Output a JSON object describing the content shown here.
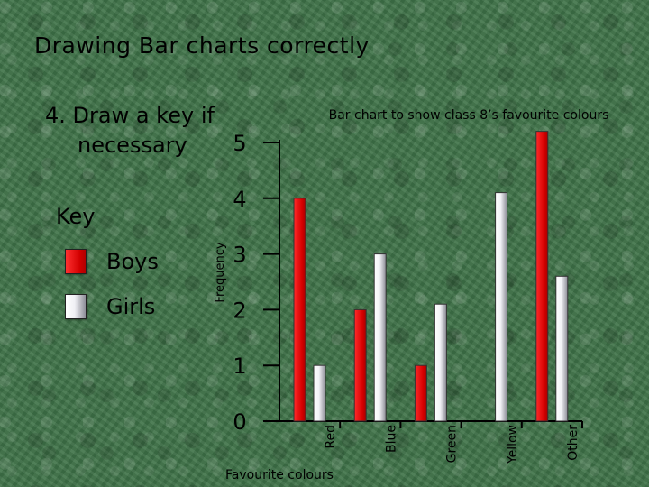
{
  "slide": {
    "title": "Drawing Bar charts correctly",
    "step_line1": "4. Draw a key if",
    "step_line2": "necessary"
  },
  "key": {
    "heading": "Key",
    "items": [
      {
        "label": "Boys",
        "color": "#e00000"
      },
      {
        "label": "Girls",
        "color": "#ffffff"
      }
    ]
  },
  "chart_data": {
    "type": "bar",
    "title": "Bar chart to show class 8’s favourite colours",
    "xlabel": "Favourite colours",
    "ylabel": "Frequency",
    "categories": [
      "Red",
      "Blue",
      "Green",
      "Yellow",
      "Other"
    ],
    "series": [
      {
        "name": "Boys",
        "color": "#e00000",
        "values": [
          4,
          2,
          1,
          0,
          5.2
        ]
      },
      {
        "name": "Girls",
        "color": "#ffffff",
        "values": [
          1,
          3,
          2.1,
          4.1,
          2.6
        ]
      }
    ],
    "yticks": [
      0,
      1,
      2,
      3,
      4,
      5
    ],
    "ylim": [
      0,
      5.3
    ],
    "grid": false
  }
}
